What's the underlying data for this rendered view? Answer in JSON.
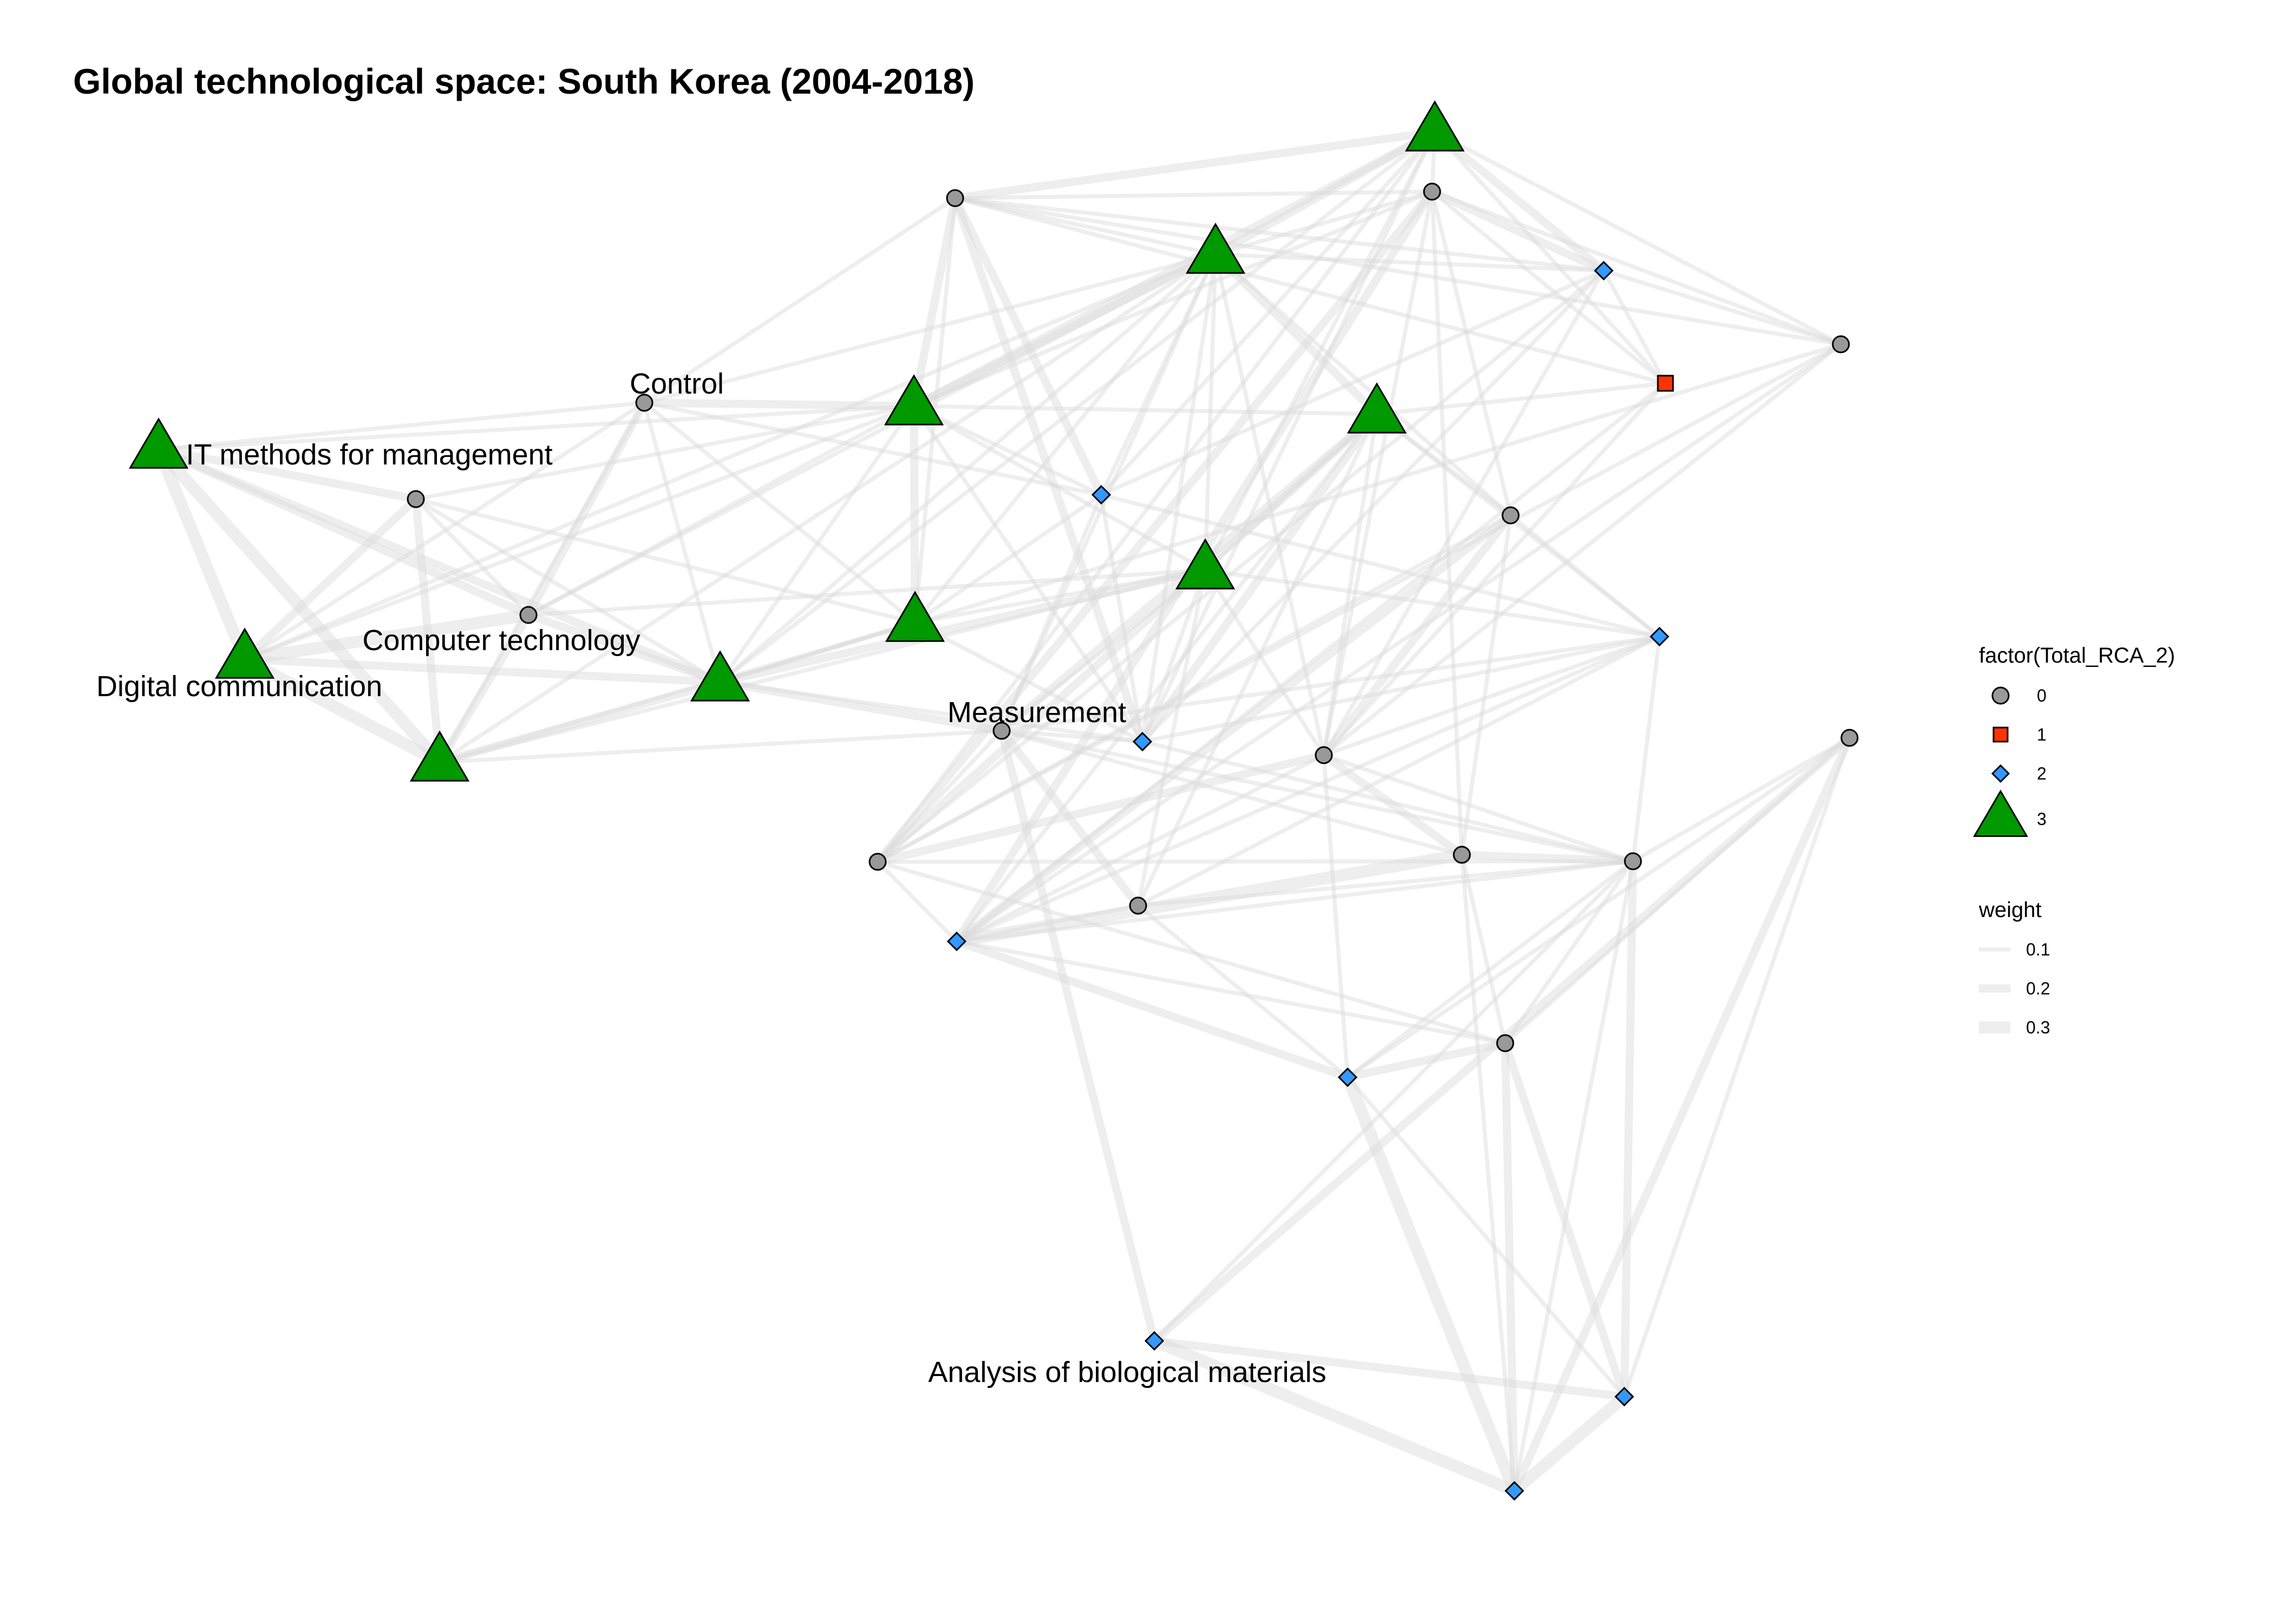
{
  "title": "Global technological space: South Korea (2004-2018)",
  "palette": {
    "edge": "#d9d9d9",
    "class_0": "#999999",
    "class_1": "#ff3300",
    "class_2": "#3399ff",
    "class_3": "#009900",
    "outline": "#000000"
  },
  "legend": {
    "shape_title": "factor(Total_RCA_2)",
    "shape_items": [
      {
        "label": "0",
        "class": "0",
        "shape": "circle"
      },
      {
        "label": "1",
        "class": "1",
        "shape": "square"
      },
      {
        "label": "2",
        "class": "2",
        "shape": "diamond"
      },
      {
        "label": "3",
        "class": "3",
        "shape": "triangle"
      }
    ],
    "weight_title": "weight",
    "weight_items": [
      {
        "label": "0.1",
        "weight": 0.1
      },
      {
        "label": "0.2",
        "weight": 0.2
      },
      {
        "label": "0.3",
        "weight": 0.3
      }
    ]
  },
  "nodes": [
    {
      "id": "IT methods for management",
      "label": "IT methods for management",
      "class": "3"
    },
    {
      "id": "Control",
      "label": "Control",
      "class": "0"
    },
    {
      "id": "Computer technology",
      "label": "Computer technology",
      "class": "0"
    },
    {
      "id": "Digital communication",
      "label": "Digital communication",
      "class": "3"
    },
    {
      "id": "Measurement",
      "label": "Measurement",
      "class": "0"
    },
    {
      "id": "Analysis of biological materials",
      "label": "Analysis of biological materials",
      "class": "2"
    },
    {
      "id": "n7",
      "label": "",
      "class": "0"
    },
    {
      "id": "n8",
      "label": "",
      "class": "3"
    },
    {
      "id": "n9",
      "label": "",
      "class": "3"
    },
    {
      "id": "n10",
      "label": "",
      "class": "3"
    },
    {
      "id": "n11",
      "label": "",
      "class": "2"
    },
    {
      "id": "n12",
      "label": "",
      "class": "3"
    },
    {
      "id": "n13",
      "label": "",
      "class": "0"
    },
    {
      "id": "n14",
      "label": "",
      "class": "3"
    },
    {
      "id": "n15",
      "label": "",
      "class": "3"
    },
    {
      "id": "n16",
      "label": "",
      "class": "2"
    },
    {
      "id": "n17",
      "label": "",
      "class": "3"
    },
    {
      "id": "n18",
      "label": "",
      "class": "2"
    },
    {
      "id": "n19",
      "label": "",
      "class": "1"
    },
    {
      "id": "n20",
      "label": "",
      "class": "0"
    },
    {
      "id": "n21",
      "label": "",
      "class": "0"
    },
    {
      "id": "n22",
      "label": "",
      "class": "3"
    },
    {
      "id": "n23",
      "label": "",
      "class": "0"
    },
    {
      "id": "n24",
      "label": "",
      "class": "0"
    },
    {
      "id": "n25",
      "label": "",
      "class": "0"
    },
    {
      "id": "n26",
      "label": "",
      "class": "2"
    },
    {
      "id": "n27",
      "label": "",
      "class": "0"
    },
    {
      "id": "n28",
      "label": "",
      "class": "2"
    },
    {
      "id": "n29",
      "label": "",
      "class": "0"
    },
    {
      "id": "n30",
      "label": "",
      "class": "0"
    },
    {
      "id": "n31",
      "label": "",
      "class": "0"
    },
    {
      "id": "n32",
      "label": "",
      "class": "2"
    },
    {
      "id": "n33",
      "label": "",
      "class": "2"
    },
    {
      "id": "n34",
      "label": "",
      "class": "2"
    },
    {
      "id": "n35",
      "label": "",
      "class": "0"
    }
  ],
  "edges": [
    {
      "source": "IT methods for management",
      "target": "Digital communication",
      "weight": 0.3
    },
    {
      "source": "IT methods for management",
      "target": "n7",
      "weight": 0.2
    },
    {
      "source": "IT methods for management",
      "target": "Computer technology",
      "weight": 0.2
    },
    {
      "source": "IT methods for management",
      "target": "n8",
      "weight": 0.3
    },
    {
      "source": "IT methods for management",
      "target": "n9",
      "weight": 0.2
    },
    {
      "source": "IT methods for management",
      "target": "Control",
      "weight": 0.1
    },
    {
      "source": "IT methods for management",
      "target": "n12",
      "weight": 0.1
    },
    {
      "source": "Digital communication",
      "target": "n8",
      "weight": 0.3
    },
    {
      "source": "Digital communication",
      "target": "n7",
      "weight": 0.2
    },
    {
      "source": "Digital communication",
      "target": "Computer technology",
      "weight": 0.3
    },
    {
      "source": "Digital communication",
      "target": "n9",
      "weight": 0.2
    },
    {
      "source": "Digital communication",
      "target": "Control",
      "weight": 0.1
    },
    {
      "source": "Digital communication",
      "target": "n14",
      "weight": 0.1
    },
    {
      "source": "Digital communication",
      "target": "n12",
      "weight": 0.1
    },
    {
      "source": "n7",
      "target": "Computer technology",
      "weight": 0.1
    },
    {
      "source": "n7",
      "target": "n8",
      "weight": 0.2
    },
    {
      "source": "n7",
      "target": "n9",
      "weight": 0.1
    },
    {
      "source": "n7",
      "target": "n10",
      "weight": 0.1
    },
    {
      "source": "n7",
      "target": "n12",
      "weight": 0.1
    },
    {
      "source": "Computer technology",
      "target": "Control",
      "weight": 0.2
    },
    {
      "source": "Computer technology",
      "target": "n9",
      "weight": 0.2
    },
    {
      "source": "Computer technology",
      "target": "n8",
      "weight": 0.2
    },
    {
      "source": "Computer technology",
      "target": "n12",
      "weight": 0.1
    },
    {
      "source": "Computer technology",
      "target": "n14",
      "weight": 0.1
    },
    {
      "source": "Computer technology",
      "target": "n15",
      "weight": 0.1
    },
    {
      "source": "Control",
      "target": "n9",
      "weight": 0.1
    },
    {
      "source": "Control",
      "target": "n10",
      "weight": 0.1
    },
    {
      "source": "Control",
      "target": "n11",
      "weight": 0.1
    },
    {
      "source": "Control",
      "target": "n12",
      "weight": 0.2
    },
    {
      "source": "Control",
      "target": "n14",
      "weight": 0.1
    },
    {
      "source": "Control",
      "target": "n8",
      "weight": 0.1
    },
    {
      "source": "Control",
      "target": "n13",
      "weight": 0.1
    },
    {
      "source": "n8",
      "target": "n9",
      "weight": 0.2
    },
    {
      "source": "n8",
      "target": "Measurement",
      "weight": 0.1
    },
    {
      "source": "n8",
      "target": "n10",
      "weight": 0.1
    },
    {
      "source": "n8",
      "target": "n15",
      "weight": 0.1
    },
    {
      "source": "n8",
      "target": "n14",
      "weight": 0.1
    },
    {
      "source": "n9",
      "target": "n15",
      "weight": 0.2
    },
    {
      "source": "n9",
      "target": "Measurement",
      "weight": 0.2
    },
    {
      "source": "n9",
      "target": "n10",
      "weight": 0.1
    },
    {
      "source": "n9",
      "target": "n14",
      "weight": 0.1
    },
    {
      "source": "n9",
      "target": "n16",
      "weight": 0.1
    },
    {
      "source": "n9",
      "target": "n20",
      "weight": 0.1
    },
    {
      "source": "n9",
      "target": "n12",
      "weight": 0.1
    },
    {
      "source": "n9",
      "target": "n17",
      "weight": 0.1
    },
    {
      "source": "n10",
      "target": "n11",
      "weight": 0.1
    },
    {
      "source": "n10",
      "target": "n12",
      "weight": 0.2
    },
    {
      "source": "n10",
      "target": "n13",
      "weight": 0.1
    },
    {
      "source": "n10",
      "target": "n14",
      "weight": 0.1
    },
    {
      "source": "n10",
      "target": "n15",
      "weight": 0.1
    },
    {
      "source": "n10",
      "target": "n16",
      "weight": 0.1
    },
    {
      "source": "n11",
      "target": "n12",
      "weight": 0.1
    },
    {
      "source": "n11",
      "target": "n13",
      "weight": 0.2
    },
    {
      "source": "n11",
      "target": "n14",
      "weight": 0.1
    },
    {
      "source": "n11",
      "target": "n16",
      "weight": 0.1
    },
    {
      "source": "n11",
      "target": "n17",
      "weight": 0.1
    },
    {
      "source": "n11",
      "target": "n18",
      "weight": 0.1
    },
    {
      "source": "n12",
      "target": "n13",
      "weight": 0.2
    },
    {
      "source": "n12",
      "target": "n14",
      "weight": 0.2
    },
    {
      "source": "n12",
      "target": "n15",
      "weight": 0.1
    },
    {
      "source": "n12",
      "target": "n17",
      "weight": 0.2
    },
    {
      "source": "n12",
      "target": "n16",
      "weight": 0.1
    },
    {
      "source": "n12",
      "target": "n21",
      "weight": 0.1
    },
    {
      "source": "n12",
      "target": "n22",
      "weight": 0.1
    },
    {
      "source": "n13",
      "target": "n14",
      "weight": 0.1
    },
    {
      "source": "n13",
      "target": "n16",
      "weight": 0.2
    },
    {
      "source": "n13",
      "target": "n17",
      "weight": 0.2
    },
    {
      "source": "n13",
      "target": "n18",
      "weight": 0.1
    },
    {
      "source": "n13",
      "target": "n19",
      "weight": 0.1
    },
    {
      "source": "n13",
      "target": "n20",
      "weight": 0.1
    },
    {
      "source": "n14",
      "target": "n15",
      "weight": 0.1
    },
    {
      "source": "n14",
      "target": "n16",
      "weight": 0.1
    },
    {
      "source": "n14",
      "target": "n17",
      "weight": 0.2
    },
    {
      "source": "n14",
      "target": "n18",
      "weight": 0.1
    },
    {
      "source": "n14",
      "target": "Measurement",
      "weight": 0.1
    },
    {
      "source": "n14",
      "target": "n21",
      "weight": 0.1
    },
    {
      "source": "n14",
      "target": "n22",
      "weight": 0.2
    },
    {
      "source": "n14",
      "target": "n24",
      "weight": 0.1
    },
    {
      "source": "n14",
      "target": "n25",
      "weight": 0.1
    },
    {
      "source": "n15",
      "target": "n16",
      "weight": 0.1
    },
    {
      "source": "n15",
      "target": "n17",
      "weight": 0.1
    },
    {
      "source": "n15",
      "target": "Measurement",
      "weight": 0.1
    },
    {
      "source": "n15",
      "target": "n22",
      "weight": 0.1
    },
    {
      "source": "n15",
      "target": "n26",
      "weight": 0.1
    },
    {
      "source": "n15",
      "target": "n27",
      "weight": 0.1
    },
    {
      "source": "n15",
      "target": "n24",
      "weight": 0.1
    },
    {
      "source": "n16",
      "target": "n17",
      "weight": 0.1
    },
    {
      "source": "n16",
      "target": "n18",
      "weight": 0.1
    },
    {
      "source": "n16",
      "target": "n22",
      "weight": 0.2
    },
    {
      "source": "n16",
      "target": "n26",
      "weight": 0.1
    },
    {
      "source": "n16",
      "target": "Measurement",
      "weight": 0.1
    },
    {
      "source": "n17",
      "target": "n18",
      "weight": 0.2
    },
    {
      "source": "n17",
      "target": "n20",
      "weight": 0.1
    },
    {
      "source": "n17",
      "target": "n19",
      "weight": 0.1
    },
    {
      "source": "n17",
      "target": "n21",
      "weight": 0.1
    },
    {
      "source": "n17",
      "target": "n23",
      "weight": 0.1
    },
    {
      "source": "n18",
      "target": "n19",
      "weight": 0.1
    },
    {
      "source": "n18",
      "target": "n20",
      "weight": 0.1
    },
    {
      "source": "n18",
      "target": "n24",
      "weight": 0.1
    },
    {
      "source": "n18",
      "target": "n21",
      "weight": 0.2
    },
    {
      "source": "n18",
      "target": "n23",
      "weight": 0.1
    },
    {
      "source": "n19",
      "target": "n21",
      "weight": 0.1
    },
    {
      "source": "n19",
      "target": "n24",
      "weight": 0.1
    },
    {
      "source": "n19",
      "target": "n22",
      "weight": 0.1
    },
    {
      "source": "n19",
      "target": "n28",
      "weight": 0.1
    },
    {
      "source": "n20",
      "target": "n21",
      "weight": 0.1
    },
    {
      "source": "n20",
      "target": "n23",
      "weight": 0.1
    },
    {
      "source": "n20",
      "target": "n24",
      "weight": 0.1
    },
    {
      "source": "n21",
      "target": "n23",
      "weight": 0.2
    },
    {
      "source": "n21",
      "target": "n28",
      "weight": 0.2
    },
    {
      "source": "n21",
      "target": "n24",
      "weight": 0.1
    },
    {
      "source": "n21",
      "target": "n25",
      "weight": 0.1
    },
    {
      "source": "n21",
      "target": "n29",
      "weight": 0.1
    },
    {
      "source": "n22",
      "target": "Measurement",
      "weight": 0.2
    },
    {
      "source": "n22",
      "target": "n23",
      "weight": 0.2
    },
    {
      "source": "n22",
      "target": "n24",
      "weight": 0.1
    },
    {
      "source": "n22",
      "target": "n26",
      "weight": 0.1
    },
    {
      "source": "n22",
      "target": "n27",
      "weight": 0.1
    },
    {
      "source": "n22",
      "target": "n28",
      "weight": 0.1
    },
    {
      "source": "n22",
      "target": "n25",
      "weight": 0.1
    },
    {
      "source": "Measurement",
      "target": "n23",
      "weight": 0.1
    },
    {
      "source": "Measurement",
      "target": "n26",
      "weight": 0.1
    },
    {
      "source": "Measurement",
      "target": "n27",
      "weight": 0.2
    },
    {
      "source": "Measurement",
      "target": "Analysis of biological materials",
      "weight": 0.2
    },
    {
      "source": "Measurement",
      "target": "n29",
      "weight": 0.1
    },
    {
      "source": "Measurement",
      "target": "n30",
      "weight": 0.1
    },
    {
      "source": "n23",
      "target": "n24",
      "weight": 0.2
    },
    {
      "source": "n23",
      "target": "n25",
      "weight": 0.1
    },
    {
      "source": "n23",
      "target": "n28",
      "weight": 0.1
    },
    {
      "source": "n23",
      "target": "n30",
      "weight": 0.1
    },
    {
      "source": "n23",
      "target": "n31",
      "weight": 0.1
    },
    {
      "source": "n24",
      "target": "n25",
      "weight": 0.2
    },
    {
      "source": "n24",
      "target": "n28",
      "weight": 0.1
    },
    {
      "source": "n24",
      "target": "n29",
      "weight": 0.2
    },
    {
      "source": "n24",
      "target": "n30",
      "weight": 0.1
    },
    {
      "source": "n24",
      "target": "n26",
      "weight": 0.1
    },
    {
      "source": "n24",
      "target": "n32",
      "weight": 0.1
    },
    {
      "source": "n25",
      "target": "n28",
      "weight": 0.2
    },
    {
      "source": "n25",
      "target": "n29",
      "weight": 0.1
    },
    {
      "source": "n25",
      "target": "n26",
      "weight": 0.1
    },
    {
      "source": "n26",
      "target": "n27",
      "weight": 0.1
    },
    {
      "source": "n26",
      "target": "n28",
      "weight": 0.1
    },
    {
      "source": "n26",
      "target": "n30",
      "weight": 0.1
    },
    {
      "source": "n27",
      "target": "n28",
      "weight": 0.1
    },
    {
      "source": "n27",
      "target": "n30",
      "weight": 0.1
    },
    {
      "source": "n27",
      "target": "n32",
      "weight": 0.1
    },
    {
      "source": "n28",
      "target": "n29",
      "weight": 0.3
    },
    {
      "source": "n28",
      "target": "n30",
      "weight": 0.1
    },
    {
      "source": "n28",
      "target": "n31",
      "weight": 0.1
    },
    {
      "source": "n28",
      "target": "n32",
      "weight": 0.2
    },
    {
      "source": "n29",
      "target": "n30",
      "weight": 0.2
    },
    {
      "source": "n29",
      "target": "n31",
      "weight": 0.1
    },
    {
      "source": "n30",
      "target": "n31",
      "weight": 0.1
    },
    {
      "source": "n30",
      "target": "n32",
      "weight": 0.1
    },
    {
      "source": "n30",
      "target": "n33",
      "weight": 0.2
    },
    {
      "source": "n30",
      "target": "n34",
      "weight": 0.1
    },
    {
      "source": "n30",
      "target": "n35",
      "weight": 0.1
    },
    {
      "source": "n31",
      "target": "n32",
      "weight": 0.2
    },
    {
      "source": "n31",
      "target": "n33",
      "weight": 0.2
    },
    {
      "source": "n31",
      "target": "n34",
      "weight": 0.2
    },
    {
      "source": "n31",
      "target": "n35",
      "weight": 0.1
    },
    {
      "source": "n32",
      "target": "n33",
      "weight": 0.1
    },
    {
      "source": "n32",
      "target": "n34",
      "weight": 0.3
    },
    {
      "source": "n32",
      "target": "n35",
      "weight": 0.1
    },
    {
      "source": "Analysis of biological materials",
      "target": "n33",
      "weight": 0.2
    },
    {
      "source": "Analysis of biological materials",
      "target": "n34",
      "weight": 0.3
    },
    {
      "source": "Analysis of biological materials",
      "target": "n35",
      "weight": 0.2
    },
    {
      "source": "n33",
      "target": "n34",
      "weight": 0.3
    },
    {
      "source": "n33",
      "target": "n35",
      "weight": 0.1
    },
    {
      "source": "n34",
      "target": "n35",
      "weight": 0.2
    },
    {
      "source": "n29",
      "target": "n34",
      "weight": 0.1
    },
    {
      "source": "n30",
      "target": "Analysis of biological materials",
      "weight": 0.1
    },
    {
      "source": "n11",
      "target": "Measurement",
      "weight": 0.1
    },
    {
      "source": "n11",
      "target": "n26",
      "weight": 0.1
    },
    {
      "source": "n16",
      "target": "n30",
      "weight": 0.1
    },
    {
      "source": "n20",
      "target": "n28",
      "weight": 0.1
    },
    {
      "source": "n13",
      "target": "n21",
      "weight": 0.1
    }
  ]
}
